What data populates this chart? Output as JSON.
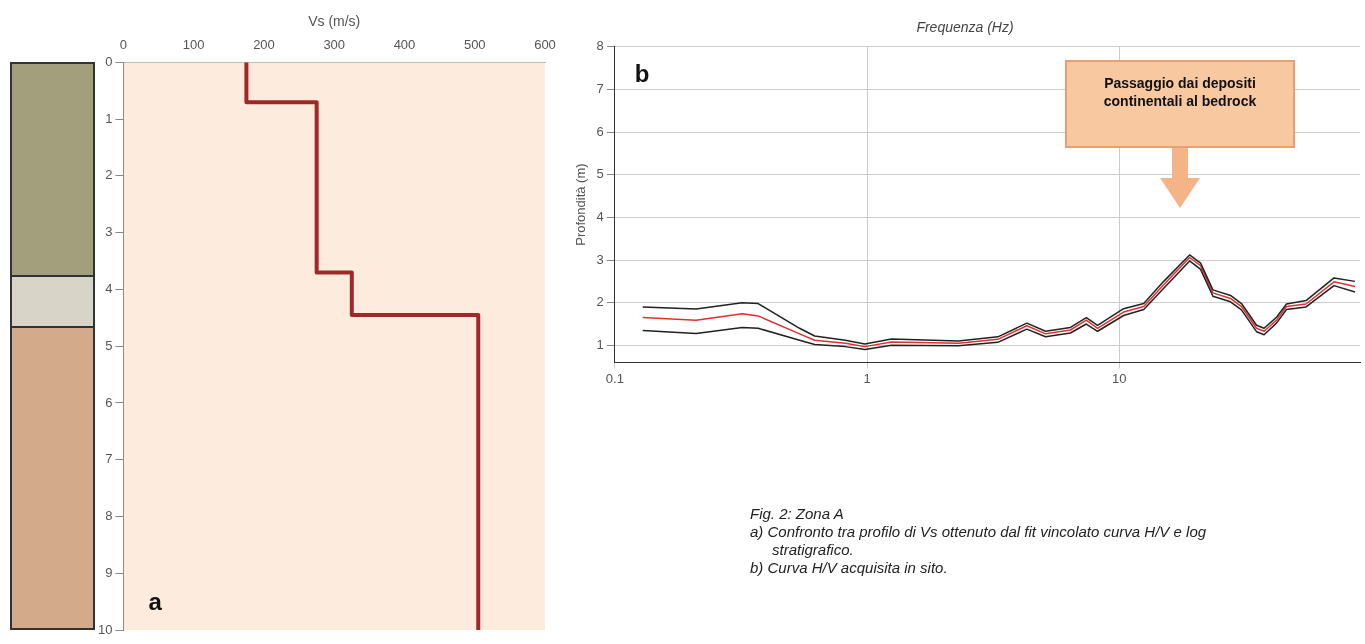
{
  "chart_data": [
    {
      "type": "line",
      "xlabel": "Vs (m/s)",
      "xlim": [
        0,
        600
      ],
      "xticks": [
        0,
        100,
        200,
        300,
        400,
        500,
        600
      ],
      "ylim": [
        10,
        0
      ],
      "yticks": [
        0,
        1,
        2,
        3,
        4,
        5,
        6,
        7,
        8,
        9,
        10
      ],
      "grid": false,
      "legend": false,
      "marker": "none",
      "line_style": "solid",
      "series": [
        {
          "color": "#a0282a",
          "x": [
            175,
            175,
            275,
            275,
            325,
            325,
            505,
            505
          ],
          "values": [
            0,
            0.7,
            0.7,
            3.7,
            3.7,
            4.45,
            4.45,
            10
          ]
        }
      ],
      "annotations": [
        "a"
      ]
    },
    {
      "type": "line",
      "title": "Frequenza (Hz)",
      "ylabel": "Profondità (m)",
      "log": "x",
      "xlim": [
        0.1,
        90
      ],
      "xticks": [
        {
          "value": 0.1,
          "label": "0.1"
        },
        1,
        10
      ],
      "ylim": [
        0.6,
        8
      ],
      "yticks": [
        1,
        2,
        3,
        4,
        5,
        6,
        7,
        8
      ],
      "grid": true,
      "legend": false,
      "marker": "none",
      "line_style": "solid",
      "x": [
        0.129,
        0.21,
        0.32,
        0.37,
        0.54,
        0.62,
        0.82,
        0.98,
        1.25,
        2.3,
        3.3,
        4.3,
        5.1,
        6.4,
        7.4,
        8.2,
        10.4,
        12.5,
        15,
        19,
        21,
        23.5,
        27.6,
        30.5,
        35,
        37.5,
        42,
        46,
        55,
        71,
        86
      ],
      "series": [
        {
          "color": "#222222",
          "values": [
            1.9,
            1.85,
            2.0,
            1.98,
            1.4,
            1.22,
            1.12,
            1.03,
            1.15,
            1.1,
            1.2,
            1.52,
            1.33,
            1.42,
            1.65,
            1.47,
            1.86,
            1.98,
            2.5,
            3.12,
            2.93,
            2.3,
            2.17,
            1.98,
            1.47,
            1.4,
            1.66,
            1.97,
            2.05,
            2.58,
            2.5
          ]
        },
        {
          "color": "#222222",
          "values": [
            1.35,
            1.28,
            1.42,
            1.4,
            1.12,
            1.02,
            0.97,
            0.9,
            1.0,
            0.99,
            1.07,
            1.38,
            1.2,
            1.29,
            1.5,
            1.33,
            1.7,
            1.84,
            2.34,
            2.98,
            2.78,
            2.15,
            2.02,
            1.83,
            1.32,
            1.25,
            1.52,
            1.84,
            1.9,
            2.4,
            2.25
          ]
        },
        {
          "color": "#e03030",
          "values": [
            1.65,
            1.59,
            1.74,
            1.69,
            1.27,
            1.12,
            1.05,
            0.97,
            1.08,
            1.05,
            1.14,
            1.46,
            1.27,
            1.36,
            1.59,
            1.4,
            1.78,
            1.91,
            2.42,
            3.06,
            2.87,
            2.23,
            2.1,
            1.91,
            1.4,
            1.33,
            1.59,
            1.91,
            1.97,
            2.49,
            2.38
          ]
        }
      ],
      "annotations": [
        "b",
        "Passaggio dai depositi continentali al bedrock",
        "Fig. 2: Zona A",
        "a) Confronto tra profilo di Vs ottenuto dal fit vincolato curva H/V e log stratigrafico.",
        "b) Curva H/V acquisita in sito."
      ]
    }
  ]
}
